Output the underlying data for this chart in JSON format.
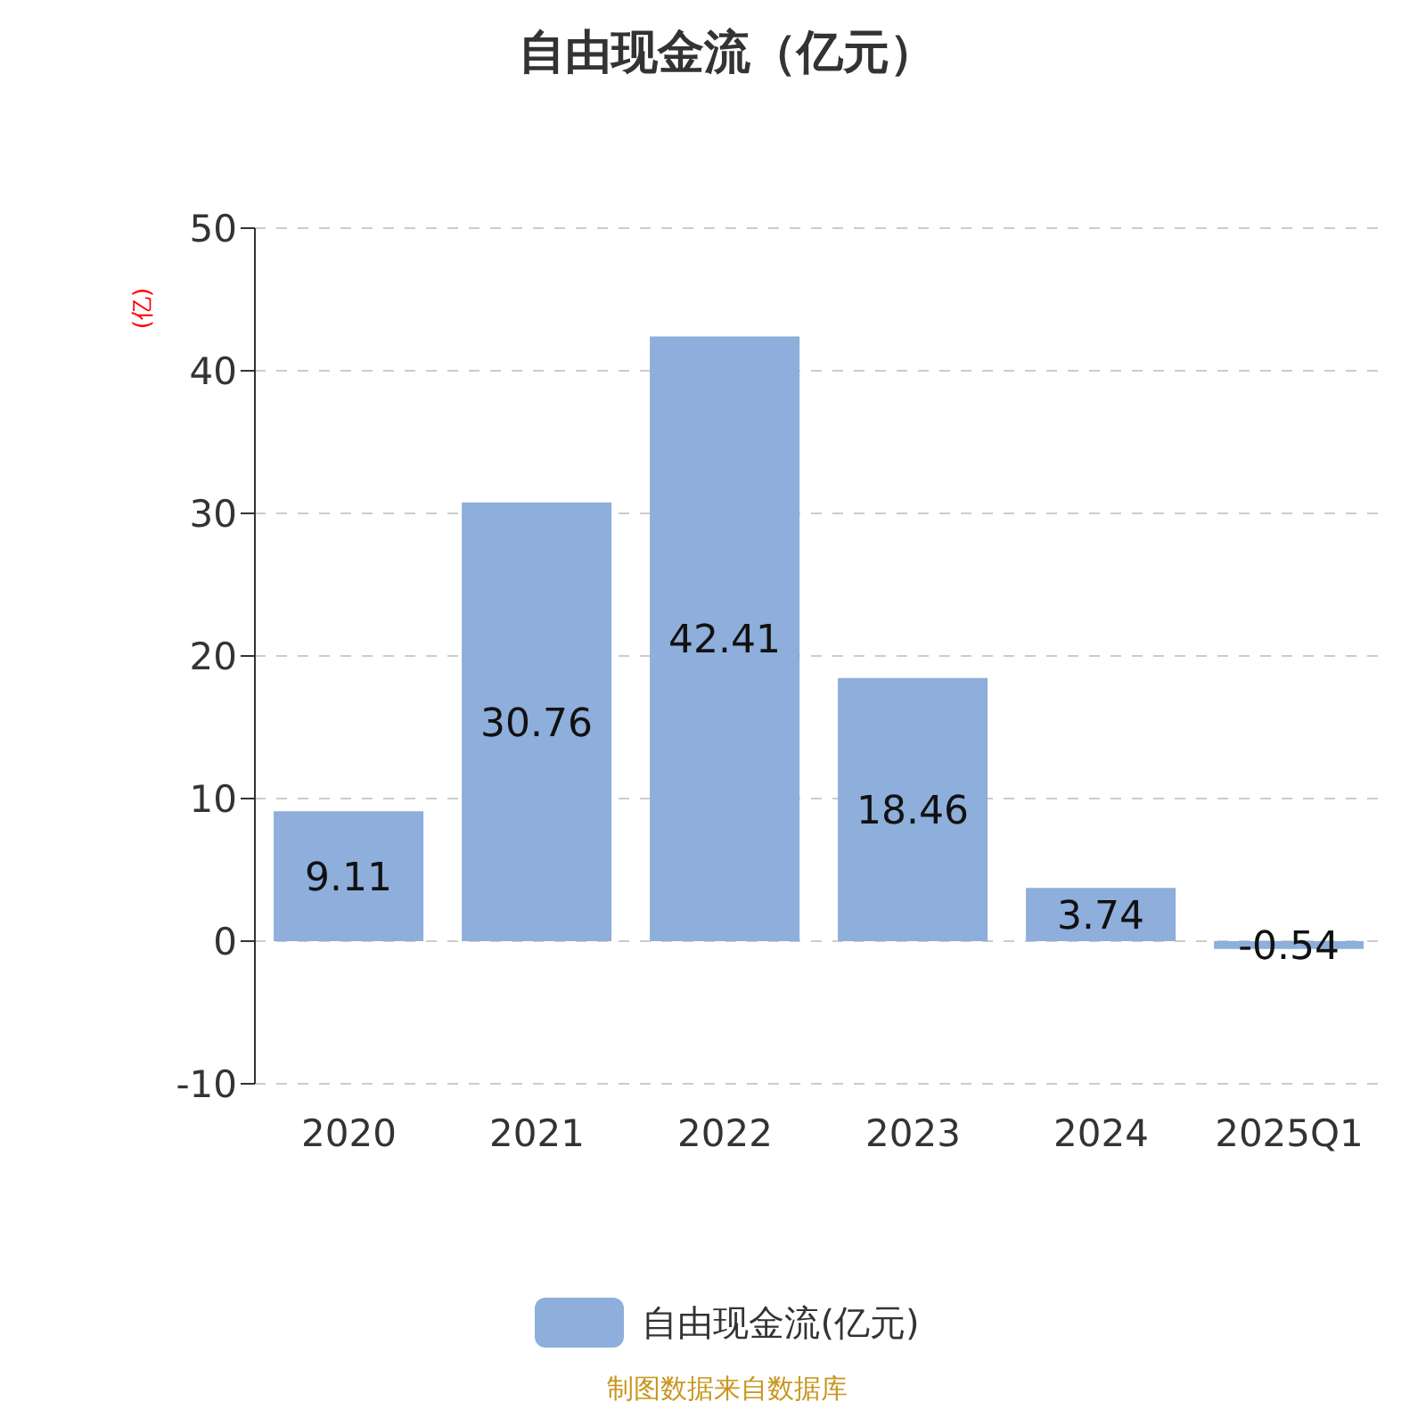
{
  "chart_data": {
    "type": "bar",
    "title": "自由现金流（亿元）",
    "ylabel": "(亿)",
    "categories": [
      "2020",
      "2021",
      "2022",
      "2023",
      "2024",
      "2025Q1"
    ],
    "series": [
      {
        "name": "自由现金流(亿元)",
        "color": "#8eaedb",
        "values": [
          9.11,
          30.76,
          42.41,
          18.46,
          3.74,
          -0.54
        ]
      }
    ],
    "ylim": [
      -10,
      50
    ],
    "yticks": [
      -10,
      0,
      10,
      20,
      30,
      40,
      50
    ],
    "grid": "y",
    "legend": "bottom",
    "data_labels": true,
    "annotations": [
      "制图数据来自数据库"
    ]
  }
}
